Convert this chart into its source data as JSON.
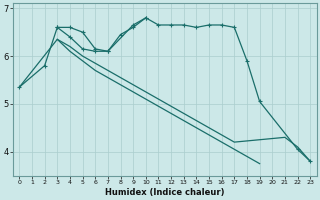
{
  "xlabel": "Humidex (Indice chaleur)",
  "background_color": "#cce8e8",
  "grid_color": "#aacece",
  "line_color": "#1a6e6a",
  "x": [
    0,
    1,
    2,
    3,
    4,
    5,
    6,
    7,
    8,
    9,
    10,
    11,
    12,
    13,
    14,
    15,
    16,
    17,
    18,
    19,
    20,
    21,
    22,
    23
  ],
  "line1_main": {
    "x": [
      0,
      2,
      3,
      4,
      5,
      6,
      7,
      9,
      10,
      11,
      12,
      13,
      14,
      15,
      16,
      17,
      18,
      19,
      22,
      23
    ],
    "y": [
      5.35,
      5.8,
      6.6,
      6.6,
      6.5,
      6.15,
      6.1,
      6.65,
      6.8,
      6.65,
      6.65,
      6.65,
      6.6,
      6.65,
      6.65,
      6.6,
      5.9,
      5.05,
      4.05,
      3.8
    ]
  },
  "line2_upper": {
    "x": [
      3,
      4,
      5,
      6,
      7,
      8,
      9,
      10
    ],
    "y": [
      6.6,
      6.4,
      6.15,
      6.1,
      6.1,
      6.45,
      6.6,
      6.8
    ]
  },
  "line3_lower1": {
    "x": [
      0,
      3,
      4,
      5,
      6,
      7,
      8,
      9,
      10,
      11,
      12,
      13,
      14,
      15,
      16,
      17,
      18,
      19
    ],
    "y": [
      5.35,
      6.35,
      6.1,
      5.9,
      5.7,
      5.55,
      5.4,
      5.25,
      5.1,
      4.95,
      4.8,
      4.65,
      4.5,
      4.35,
      4.2,
      4.05,
      3.9,
      3.75
    ]
  },
  "line4_lower2": {
    "x": [
      3,
      4,
      5,
      6,
      7,
      8,
      9,
      10,
      11,
      12,
      13,
      14,
      15,
      16,
      17,
      21,
      22,
      23
    ],
    "y": [
      6.35,
      6.2,
      6.0,
      5.85,
      5.7,
      5.55,
      5.4,
      5.25,
      5.1,
      4.95,
      4.8,
      4.65,
      4.5,
      4.35,
      4.2,
      4.3,
      4.1,
      3.8
    ]
  },
  "ylim": [
    3.5,
    7.1
  ],
  "yticks": [
    4,
    5,
    6,
    7
  ],
  "xticks": [
    0,
    1,
    2,
    3,
    4,
    5,
    6,
    7,
    8,
    9,
    10,
    11,
    12,
    13,
    14,
    15,
    16,
    17,
    18,
    19,
    20,
    21,
    22,
    23
  ]
}
